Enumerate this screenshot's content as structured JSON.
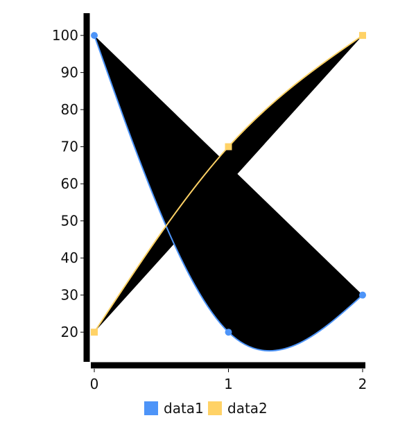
{
  "chart_data": {
    "type": "line",
    "title": "",
    "xlabel": "",
    "ylabel": "",
    "x": [
      0,
      1,
      2
    ],
    "xlim": [
      0,
      2
    ],
    "ylim": [
      12,
      106
    ],
    "xticks": [
      0,
      1,
      2
    ],
    "yticks": [
      20,
      30,
      40,
      50,
      60,
      70,
      80,
      90,
      100
    ],
    "interpolation": "spline",
    "area_fill": "#000000",
    "grid": false,
    "legend": "bottom-center",
    "series": [
      {
        "name": "data1",
        "values": [
          100,
          20,
          30
        ],
        "color": "#4d94f8",
        "marker": "circle"
      },
      {
        "name": "data2",
        "values": [
          20,
          70,
          100
        ],
        "color": "#ffd266",
        "marker": "square"
      }
    ]
  }
}
